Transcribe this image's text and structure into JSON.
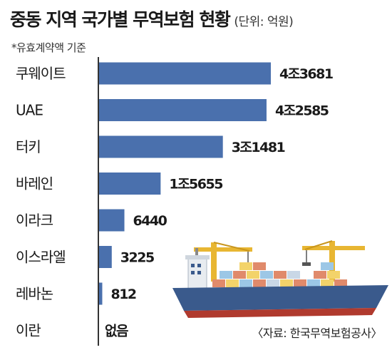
{
  "header": {
    "title": "중동 지역 국가별 무역보험 현황",
    "unit": "(단위: 억원)",
    "note": "*유효계약액 기준"
  },
  "source": "〈자료: 한국무역보험공사〉",
  "colors": {
    "bar": "#4a70ad",
    "axis": "#333333",
    "ship_hull": "#3a5a8c",
    "ship_bottom": "#b03a2e"
  },
  "chart_data": {
    "type": "bar",
    "orientation": "horizontal",
    "categories": [
      "쿠웨이트",
      "UAE",
      "터키",
      "바레인",
      "이라크",
      "이스라엘",
      "레바논",
      "이란"
    ],
    "values": [
      43681,
      42585,
      31481,
      15655,
      6440,
      3225,
      812,
      0
    ],
    "value_labels": [
      "4조3681",
      "4조2585",
      "3조1481",
      "1조5655",
      "6440",
      "3225",
      "812",
      "없음"
    ],
    "xlim": [
      0,
      43681
    ],
    "grid": false,
    "legend": "none"
  }
}
